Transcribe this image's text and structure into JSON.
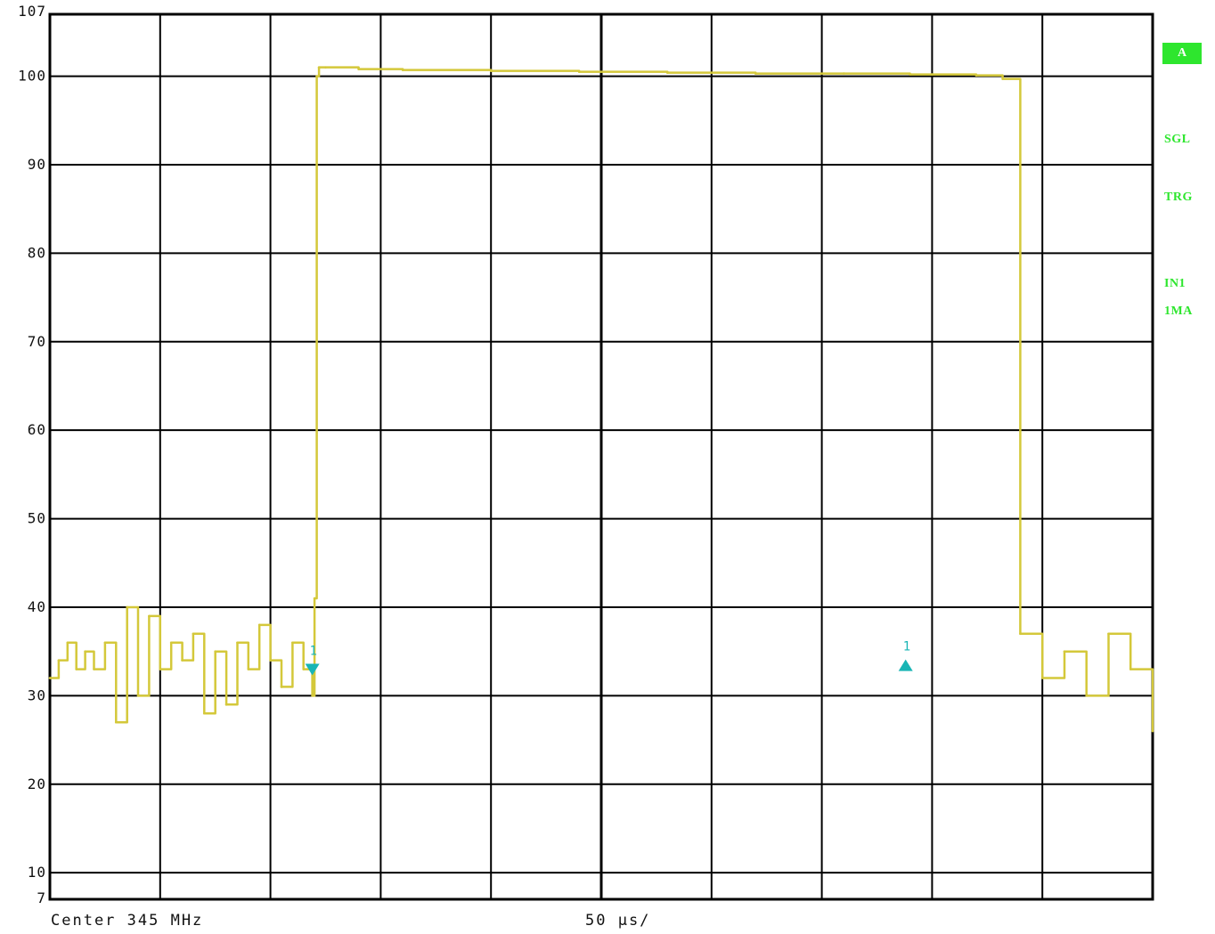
{
  "chart_data": {
    "type": "line",
    "ylim": [
      7,
      107
    ],
    "xlim": [
      0,
      500
    ],
    "yticks": [
      "107",
      "100",
      "90",
      "80",
      "70",
      "60",
      "50",
      "40",
      "30",
      "20",
      "10",
      "7"
    ],
    "x_divisions": 10,
    "series": [
      {
        "color": "#d4c83a",
        "x": [
          0,
          4,
          8,
          12,
          16,
          20,
          25,
          30,
          35,
          40,
          45,
          50,
          55,
          60,
          65,
          70,
          75,
          80,
          85,
          90,
          95,
          100,
          105,
          110,
          115,
          119,
          120,
          121,
          122,
          125,
          140,
          160,
          200,
          240,
          280,
          320,
          360,
          390,
          400,
          420,
          432,
          440,
          450,
          460,
          470,
          480,
          490,
          500
        ],
        "y": [
          32,
          34,
          36,
          33,
          35,
          33,
          36,
          27,
          40,
          30,
          39,
          33,
          36,
          34,
          37,
          28,
          35,
          29,
          36,
          33,
          38,
          34,
          31,
          36,
          33,
          30,
          41,
          100,
          101,
          101,
          100.8,
          100.7,
          100.6,
          100.5,
          100.4,
          100.3,
          100.3,
          100.2,
          100.2,
          100.1,
          99.7,
          37,
          32,
          35,
          30,
          37,
          33,
          26
        ]
      }
    ],
    "markers": [
      {
        "label": "1",
        "x": 119,
        "y": 33,
        "shape": "down-triangle",
        "color": "#18b5b5"
      },
      {
        "label": "1",
        "x": 388,
        "y": 33.5,
        "shape": "up-triangle",
        "color": "#18b5b5"
      }
    ],
    "grid": true
  },
  "footer": {
    "center": "Center 345 MHz",
    "sweep": "50 µs/"
  },
  "sidebar": {
    "badge": "A",
    "sgl": "SGL",
    "trg": "TRG",
    "in1": "IN1",
    "ma": "1MA"
  }
}
